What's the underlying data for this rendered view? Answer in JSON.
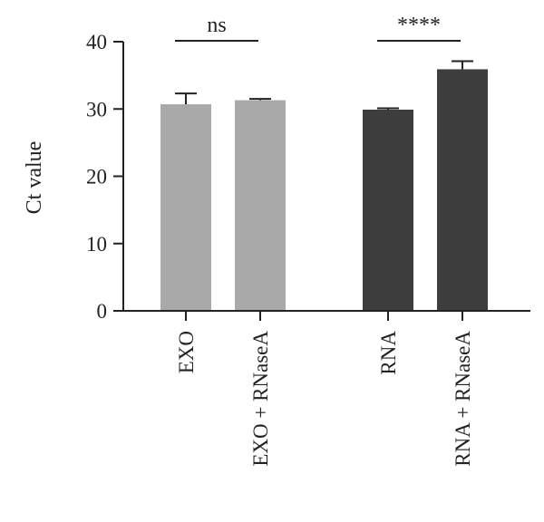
{
  "chart_data": {
    "type": "bar",
    "categories": [
      "EXO",
      "EXO + RNaseA",
      "RNA",
      "RNA + RNaseA"
    ],
    "values": [
      30.7,
      31.3,
      29.9,
      35.9
    ],
    "error": [
      1.6,
      0.2,
      0.2,
      1.2
    ],
    "colors": [
      "#a9a9a9",
      "#a9a9a9",
      "#3d3d3d",
      "#3d3d3d"
    ],
    "xlabel": "",
    "ylabel": "Ct value",
    "ylim": [
      0,
      40
    ],
    "yticks": [
      "0",
      "10",
      "20",
      "30",
      "40"
    ],
    "significance": [
      {
        "from": 0,
        "to": 1,
        "label": "ns"
      },
      {
        "from": 2,
        "to": 3,
        "label": "****"
      }
    ],
    "grid": false,
    "legend": "none"
  }
}
